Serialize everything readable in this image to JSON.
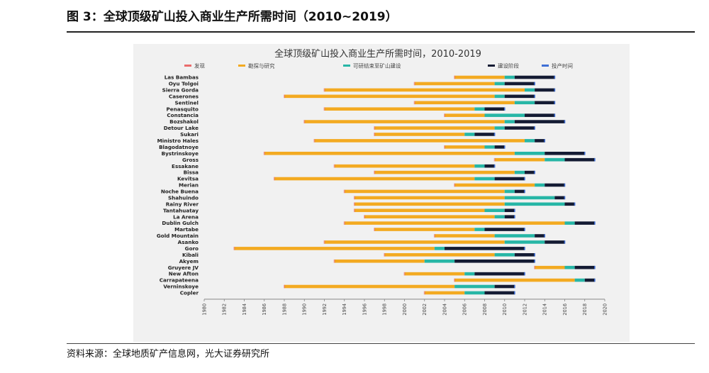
{
  "figure": {
    "caption": "图 3：全球顶级矿山投入商业生产所需时间（2010~2019）",
    "source": "资料来源：全球地质矿产信息网，光大证券研究所"
  },
  "colors": {
    "discovery": "#ea6c6c",
    "exploration": "#f3aa21",
    "feasibility": "#27b6a6",
    "construction": "#141b33",
    "production": "#3f6fd6",
    "chart_bg": "#f1f1f1"
  },
  "chart_data": {
    "type": "bar",
    "orientation": "horizontal-stacked-timeline",
    "title": "全球顶级矿山投入商业生产所需时间，2010-2019",
    "xlim": [
      1980,
      2020
    ],
    "x_ticks": [
      1980,
      1982,
      1984,
      1986,
      1988,
      1990,
      1992,
      1994,
      1996,
      1998,
      2000,
      2002,
      2004,
      2006,
      2008,
      2010,
      2012,
      2014,
      2016,
      2018,
      2020
    ],
    "grid": false,
    "legend_position": "top",
    "legend": [
      "发现",
      "勘探与研究",
      "可研结束至矿山建设",
      "建设阶段",
      "投产时间"
    ],
    "phase_keys": [
      "exploration",
      "feasibility",
      "construction"
    ],
    "mines": [
      {
        "name": "Las Bambas",
        "discovery": 2005,
        "exploration": [
          2005,
          2010
        ],
        "feasibility": [
          2010,
          2011
        ],
        "construction": [
          2011,
          2015
        ],
        "production": 2015
      },
      {
        "name": "Oyu Tolgoi",
        "discovery": 2001,
        "exploration": [
          2001,
          2009
        ],
        "feasibility": [
          2009,
          2010
        ],
        "construction": [
          2010,
          2013
        ],
        "production": 2013
      },
      {
        "name": "Sierra Gorda",
        "discovery": 1992,
        "exploration": [
          1992,
          2012
        ],
        "feasibility": [
          2012,
          2013
        ],
        "construction": [
          2013,
          2015
        ],
        "production": 2015
      },
      {
        "name": "Caserones",
        "discovery": 1988,
        "exploration": [
          1988,
          2009
        ],
        "feasibility": [
          2009,
          2010
        ],
        "construction": [
          2010,
          2013
        ],
        "production": 2013
      },
      {
        "name": "Sentinel",
        "discovery": 2001,
        "exploration": [
          2001,
          2011
        ],
        "feasibility": [
          2011,
          2013
        ],
        "construction": [
          2013,
          2015
        ],
        "production": 2015
      },
      {
        "name": "Penasquito",
        "discovery": 1992,
        "exploration": [
          1992,
          2007
        ],
        "feasibility": [
          2007,
          2008
        ],
        "construction": [
          2008,
          2010
        ],
        "production": 2010
      },
      {
        "name": "Constancia",
        "discovery": 2004,
        "exploration": [
          2004,
          2008
        ],
        "feasibility": [
          2008,
          2012
        ],
        "construction": [
          2012,
          2015
        ],
        "production": 2015
      },
      {
        "name": "Bozshakol",
        "discovery": 1990,
        "exploration": [
          1990,
          2010
        ],
        "feasibility": [
          2010,
          2011
        ],
        "construction": [
          2011,
          2016
        ],
        "production": 2016
      },
      {
        "name": "Detour Lake",
        "discovery": 1997,
        "exploration": [
          1997,
          2009
        ],
        "feasibility": [
          2009,
          2010
        ],
        "construction": [
          2010,
          2013
        ],
        "production": 2013
      },
      {
        "name": "Sukari",
        "discovery": 1997,
        "exploration": [
          1997,
          2006
        ],
        "feasibility": [
          2006,
          2007
        ],
        "construction": [
          2007,
          2009
        ],
        "production": 2009
      },
      {
        "name": "Ministro Hales",
        "discovery": 1991,
        "exploration": [
          1991,
          2012
        ],
        "feasibility": [
          2012,
          2013
        ],
        "construction": [
          2013,
          2014
        ],
        "production": 2014
      },
      {
        "name": "Blagodatnoye",
        "discovery": 2004,
        "exploration": [
          2004,
          2008
        ],
        "feasibility": [
          2008,
          2009
        ],
        "construction": [
          2009,
          2010
        ],
        "production": 2010
      },
      {
        "name": "Bystrinskoye",
        "discovery": 1986,
        "exploration": [
          1986,
          2011
        ],
        "feasibility": [
          2011,
          2014
        ],
        "construction": [
          2014,
          2018
        ],
        "production": 2018
      },
      {
        "name": "Gross",
        "discovery": 2009,
        "exploration": [
          2009,
          2014
        ],
        "feasibility": [
          2014,
          2016
        ],
        "construction": [
          2016,
          2019
        ],
        "production": 2019
      },
      {
        "name": "Essakane",
        "discovery": 1993,
        "exploration": [
          1993,
          2007
        ],
        "feasibility": [
          2007,
          2008
        ],
        "construction": [
          2008,
          2009
        ],
        "production": 2009
      },
      {
        "name": "Bissa",
        "discovery": 1997,
        "exploration": [
          1997,
          2011
        ],
        "feasibility": [
          2011,
          2012
        ],
        "construction": [
          2012,
          2013
        ],
        "production": 2013
      },
      {
        "name": "Kevitsa",
        "discovery": 1987,
        "exploration": [
          1987,
          2007
        ],
        "feasibility": [
          2007,
          2009
        ],
        "construction": [
          2009,
          2012
        ],
        "production": 2012
      },
      {
        "name": "Merian",
        "discovery": 2005,
        "exploration": [
          2005,
          2013
        ],
        "feasibility": [
          2013,
          2014
        ],
        "construction": [
          2014,
          2016
        ],
        "production": 2016
      },
      {
        "name": "Noche Buena",
        "discovery": 1994,
        "exploration": [
          1994,
          2010
        ],
        "feasibility": [
          2010,
          2011
        ],
        "construction": [
          2011,
          2012
        ],
        "production": 2012
      },
      {
        "name": "Shahuindo",
        "discovery": 1995,
        "exploration": [
          1995,
          2010
        ],
        "feasibility": [
          2010,
          2015
        ],
        "construction": [
          2015,
          2016
        ],
        "production": 2016
      },
      {
        "name": "Rainy River",
        "discovery": 1995,
        "exploration": [
          1995,
          2010
        ],
        "feasibility": [
          2010,
          2016
        ],
        "construction": [
          2016,
          2017
        ],
        "production": 2017
      },
      {
        "name": "Tantahuatay",
        "discovery": 1995,
        "exploration": [
          1995,
          2008
        ],
        "feasibility": [
          2008,
          2010
        ],
        "construction": [
          2010,
          2011
        ],
        "production": 2011
      },
      {
        "name": "La Arena",
        "discovery": 1996,
        "exploration": [
          1996,
          2009
        ],
        "feasibility": [
          2009,
          2010
        ],
        "construction": [
          2010,
          2011
        ],
        "production": 2011
      },
      {
        "name": "Dublin Gulch",
        "discovery": 1994,
        "exploration": [
          1994,
          2016
        ],
        "feasibility": [
          2016,
          2017
        ],
        "construction": [
          2017,
          2019
        ],
        "production": 2019
      },
      {
        "name": "Martabe",
        "discovery": 1997,
        "exploration": [
          1997,
          2007
        ],
        "feasibility": [
          2007,
          2008
        ],
        "construction": [
          2008,
          2012
        ],
        "production": 2012
      },
      {
        "name": "Gold Mountain",
        "discovery": 2003,
        "exploration": [
          2003,
          2009
        ],
        "feasibility": [
          2009,
          2013
        ],
        "construction": [
          2013,
          2014
        ],
        "production": 2014
      },
      {
        "name": "Asanko",
        "discovery": 1992,
        "exploration": [
          1992,
          2010
        ],
        "feasibility": [
          2010,
          2014
        ],
        "construction": [
          2014,
          2016
        ],
        "production": 2016
      },
      {
        "name": "Goro",
        "discovery": 1983,
        "exploration": [
          1983,
          2003
        ],
        "feasibility": [
          2003,
          2004
        ],
        "construction": [
          2004,
          2012
        ],
        "production": 2012
      },
      {
        "name": "Kibali",
        "discovery": 1998,
        "exploration": [
          1998,
          2009
        ],
        "feasibility": [
          2009,
          2011
        ],
        "construction": [
          2011,
          2013
        ],
        "production": 2013
      },
      {
        "name": "Akyem",
        "discovery": 1993,
        "exploration": [
          1993,
          2002
        ],
        "feasibility": [
          2002,
          2005
        ],
        "construction": [
          2005,
          2013
        ],
        "production": 2013
      },
      {
        "name": "Gruyere JV",
        "discovery": 2013,
        "exploration": [
          2013,
          2016
        ],
        "feasibility": [
          2016,
          2017
        ],
        "construction": [
          2017,
          2019
        ],
        "production": 2019
      },
      {
        "name": "New Afton",
        "discovery": 2000,
        "exploration": [
          2000,
          2006
        ],
        "feasibility": [
          2006,
          2007
        ],
        "construction": [
          2007,
          2012
        ],
        "production": 2012
      },
      {
        "name": "Carrapateena",
        "discovery": 2005,
        "exploration": [
          2005,
          2017
        ],
        "feasibility": [
          2017,
          2018
        ],
        "construction": [
          2018,
          2019
        ],
        "production": 2019
      },
      {
        "name": "Verninskoye",
        "discovery": 1988,
        "exploration": [
          1988,
          2005
        ],
        "feasibility": [
          2005,
          2009
        ],
        "construction": [
          2009,
          2011
        ],
        "production": 2011
      },
      {
        "name": "Copler",
        "discovery": 2002,
        "exploration": [
          2002,
          2006
        ],
        "feasibility": [
          2006,
          2008
        ],
        "construction": [
          2008,
          2011
        ],
        "production": 2011
      }
    ]
  }
}
